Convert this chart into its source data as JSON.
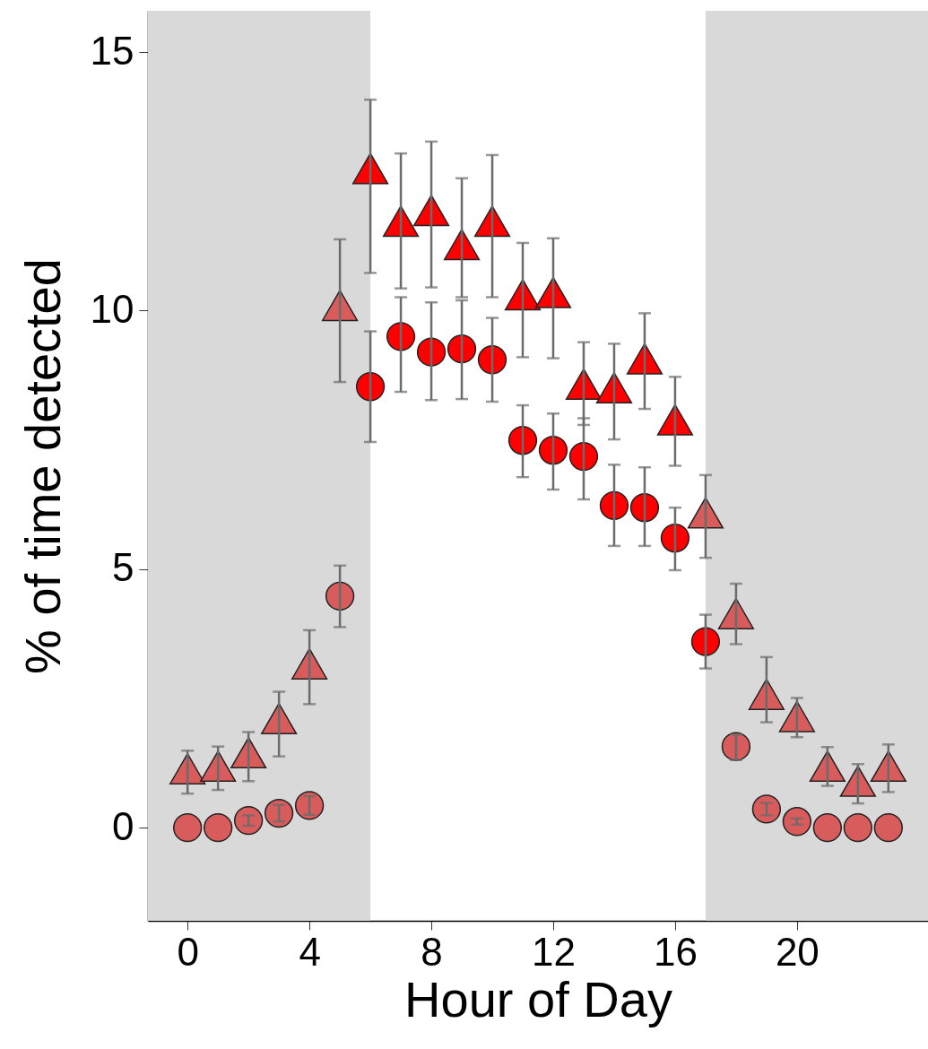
{
  "chart_data": {
    "type": "scatter",
    "xlabel": "Hour of Day",
    "ylabel": "% of time detected",
    "x": [
      0,
      1,
      2,
      3,
      4,
      5,
      6,
      7,
      8,
      9,
      10,
      11,
      12,
      13,
      14,
      15,
      16,
      17,
      18,
      19,
      20,
      21,
      22,
      23
    ],
    "xlim": [
      -1.3,
      24.3
    ],
    "xticks": [
      0,
      4,
      8,
      12,
      16,
      20
    ],
    "ylim": [
      -1.8,
      15.8
    ],
    "yticks": [
      0,
      5,
      10,
      15
    ],
    "grid": false,
    "bands": [
      {
        "axis": "x",
        "from": -1.3,
        "to": 6,
        "color": "#d9d9d9"
      },
      {
        "axis": "x",
        "from": 17,
        "to": 24.3,
        "color": "#d9d9d9"
      }
    ],
    "series": [
      {
        "marker": "circle",
        "colors": [
          "#d95c5c",
          "#d95c5c",
          "#d95c5c",
          "#d95c5c",
          "#d95c5c",
          "#d95c5c",
          "#ff0000",
          "#ff0000",
          "#ff0000",
          "#ff0000",
          "#ff0000",
          "#ff0000",
          "#ff0000",
          "#ff0000",
          "#ff0000",
          "#ff0000",
          "#ff0000",
          "#ff0000",
          "#d95c5c",
          "#d95c5c",
          "#d95c5c",
          "#d95c5c",
          "#d95c5c",
          "#d95c5c"
        ],
        "values": [
          0,
          0,
          0.14,
          0.28,
          0.43,
          4.48,
          8.53,
          9.5,
          9.2,
          9.26,
          9.05,
          7.49,
          7.3,
          7.18,
          6.23,
          6.19,
          5.6,
          3.6,
          1.57,
          0.36,
          0.12,
          0,
          0,
          0
        ],
        "errors": [
          null,
          null,
          0.1,
          0.16,
          0.18,
          [
            3.88,
            5.07
          ],
          [
            7.46,
            9.6
          ],
          [
            8.43,
            10.26
          ],
          [
            8.27,
            10.16
          ],
          [
            8.29,
            10.2
          ],
          [
            8.24,
            9.86
          ],
          [
            6.78,
            8.17
          ],
          [
            6.54,
            8.01
          ],
          [
            6.35,
            7.92
          ],
          [
            5.45,
            7.02
          ],
          [
            5.45,
            6.97
          ],
          [
            4.98,
            6.19
          ],
          [
            3.08,
            4.12
          ],
          [
            1.31,
            1.8
          ],
          0.12,
          0.06,
          null,
          null,
          null
        ]
      },
      {
        "marker": "triangle",
        "colors": [
          "#d95c5c",
          "#d95c5c",
          "#d95c5c",
          "#d95c5c",
          "#d95c5c",
          "#d95c5c",
          "#ff0000",
          "#ff0000",
          "#ff0000",
          "#ff0000",
          "#ff0000",
          "#ff0000",
          "#ff0000",
          "#ff0000",
          "#ff0000",
          "#ff0000",
          "#ff0000",
          "#d95c5c",
          "#d95c5c",
          "#d95c5c",
          "#d95c5c",
          "#d95c5c",
          "#d95c5c",
          "#d95c5c"
        ],
        "values": [
          1.14,
          1.19,
          1.45,
          2.11,
          3.17,
          10.1,
          12.75,
          11.73,
          11.94,
          11.28,
          11.73,
          10.31,
          10.35,
          8.58,
          8.51,
          9.07,
          7.89,
          6.09,
          4.14,
          2.58,
          2.15,
          1.19,
          0.9,
          1.19
        ],
        "errors": [
          [
            0.66,
            1.49
          ],
          [
            0.73,
            1.57
          ],
          [
            0.9,
            1.85
          ],
          [
            1.38,
            2.63
          ],
          [
            2.39,
            3.82
          ],
          [
            8.62,
            11.38
          ],
          [
            10.73,
            14.08
          ],
          [
            10.43,
            13.04
          ],
          [
            10.45,
            13.27
          ],
          [
            10.26,
            12.56
          ],
          [
            10.26,
            13.01
          ],
          [
            9.1,
            11.31
          ],
          [
            9.08,
            11.4
          ],
          [
            7.79,
            9.39
          ],
          [
            7.51,
            9.36
          ],
          [
            8.1,
            9.95
          ],
          [
            7.0,
            8.72
          ],
          [
            5.22,
            6.82
          ],
          [
            3.55,
            4.72
          ],
          [
            2.04,
            3.3
          ],
          [
            1.75,
            2.51
          ],
          [
            0.81,
            1.56
          ],
          [
            0.47,
            1.23
          ],
          [
            0.69,
            1.61
          ]
        ]
      }
    ]
  }
}
